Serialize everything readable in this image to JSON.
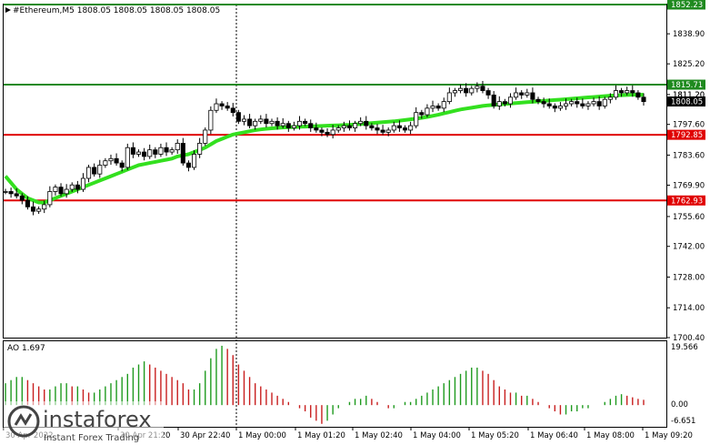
{
  "header": {
    "symbol_label": "#Ethereum,M5  1808.05 1808.05 1808.05 1808.05"
  },
  "indicator": {
    "label": "AO 1.697",
    "scale_top": "19.566",
    "scale_zero": "0.00",
    "scale_bottom": "-6.651"
  },
  "watermark": {
    "brand": "instaforex",
    "tagline": "Instant Forex Trading"
  },
  "colors": {
    "background": "#ffffff",
    "candle": "#000000",
    "ma_line": "#33e01f",
    "support_resistance": "#e00000",
    "top_level": "#1f8a1f",
    "ao_up": "#1e9a1e",
    "ao_down": "#c81e1e",
    "current_price_badge": "#000000"
  },
  "chart_data": {
    "type": "candlestick",
    "symbol": "#Ethereum",
    "timeframe": "M5",
    "y_ticks": [
      "1838.90",
      "1825.20",
      "1811.20",
      "1797.60",
      "1783.60",
      "1769.90",
      "1755.60",
      "1742.00",
      "1728.00",
      "1714.00",
      "1700.40"
    ],
    "x_ticks": [
      "30 Apr 2022",
      "30 Apr 21:20",
      "30 Apr 22:40",
      "1 May 00:00",
      "1 May 01:20",
      "1 May 02:40",
      "1 May 04:00",
      "1 May 05:20",
      "1 May 06:40",
      "1 May 08:00",
      "1 May 09:20"
    ],
    "x_ticks_display": [
      "30 Apr 2022",
      "30 Apr 21:20",
      "30 Apr 22:40",
      "1 May 00:00",
      "1 May 01:20",
      "1 May 02:40",
      "1 May 04:00",
      "1 May 05:20",
      "1 May 06:40",
      "1 May 08:00",
      "1 May 09:20"
    ],
    "ylim": [
      1700.4,
      1852.23
    ],
    "levels": [
      {
        "value": 1852.23,
        "label": "1852.23",
        "color": "#1f8a1f"
      },
      {
        "value": 1815.71,
        "label": "1815.71",
        "color": "#1f8a1f"
      },
      {
        "value": 1792.85,
        "label": "1792.85",
        "color": "#e00000"
      },
      {
        "value": 1762.93,
        "label": "1762.93",
        "color": "#e00000"
      }
    ],
    "current_price": {
      "value": 1808.05,
      "label": "1808.05"
    },
    "secondary_price": {
      "value": 1811.2,
      "label": "1811.20"
    },
    "close": [
      1767,
      1766,
      1765,
      1763,
      1760,
      1758,
      1759,
      1761,
      1767,
      1769,
      1766,
      1768,
      1770,
      1768,
      1773,
      1778,
      1775,
      1779,
      1781,
      1782,
      1780,
      1778,
      1787,
      1784,
      1785,
      1783,
      1786,
      1784,
      1787,
      1785,
      1786,
      1789,
      1780,
      1778,
      1784,
      1789,
      1795,
      1804,
      1807,
      1806,
      1805,
      1803,
      1799,
      1800,
      1797,
      1799,
      1800,
      1798,
      1799,
      1797,
      1798,
      1796,
      1797,
      1799,
      1798,
      1796,
      1795,
      1794,
      1793,
      1795,
      1796,
      1797,
      1796,
      1798,
      1799,
      1797,
      1796,
      1795,
      1794,
      1795,
      1797,
      1796,
      1795,
      1797,
      1803,
      1802,
      1805,
      1806,
      1805,
      1808,
      1812,
      1813,
      1814,
      1812,
      1814,
      1815,
      1813,
      1811,
      1806,
      1808,
      1807,
      1810,
      1812,
      1811,
      1812,
      1809,
      1808,
      1807,
      1806,
      1805,
      1806,
      1807,
      1808,
      1807,
      1806,
      1807,
      1808,
      1806,
      1809,
      1810,
      1813,
      1812,
      1813,
      1812,
      1810,
      1808
    ],
    "ma": [
      1774,
      1771,
      1768,
      1766,
      1764,
      1763,
      1762,
      1762,
      1763,
      1764,
      1765,
      1766,
      1767,
      1768,
      1769,
      1770,
      1771,
      1772,
      1773,
      1774,
      1775,
      1776,
      1777,
      1778,
      1779,
      1779.5,
      1780,
      1780.5,
      1781,
      1781.5,
      1782,
      1783,
      1783.5,
      1784,
      1785,
      1786,
      1787,
      1788.5,
      1790,
      1791,
      1792,
      1793,
      1793.5,
      1794,
      1794.5,
      1795,
      1795.3,
      1795.6,
      1795.8,
      1796,
      1796.2,
      1796.3,
      1796.4,
      1796.5,
      1796.6,
      1796.7,
      1796.8,
      1796.9,
      1797,
      1797.1,
      1797.2,
      1797.3,
      1797.4,
      1797.6,
      1797.8,
      1798,
      1798.2,
      1798.4,
      1798.6,
      1798.8,
      1799,
      1799.3,
      1799.6,
      1799.9,
      1800.2,
      1800.6,
      1801,
      1801.5,
      1802,
      1802.6,
      1803.2,
      1803.8,
      1804.4,
      1804.8,
      1805.2,
      1805.6,
      1806,
      1806.3,
      1806.5,
      1806.7,
      1806.9,
      1807.1,
      1807.3,
      1807.5,
      1807.7,
      1807.9,
      1808.1,
      1808.3,
      1808.5,
      1808.7,
      1808.9,
      1809.1,
      1809.3,
      1809.5,
      1809.7,
      1809.9,
      1810.1,
      1810.3,
      1810.5,
      1810.7,
      1810.8,
      1810.9,
      1811,
      1811.1,
      1811.1,
      1811.1
    ],
    "ao": [
      7,
      8,
      9,
      9,
      8,
      7,
      6,
      5,
      5,
      6,
      7,
      7,
      6,
      6,
      5,
      4,
      4,
      5,
      6,
      7,
      8,
      9,
      10,
      12,
      13,
      14,
      13,
      12,
      11,
      10,
      9,
      8,
      7,
      5,
      5,
      7,
      11,
      15,
      18,
      19,
      18,
      16,
      13,
      11,
      9,
      7,
      6,
      5,
      4,
      3,
      2,
      1,
      0,
      -1,
      -2,
      -4,
      -5,
      -6,
      -5,
      -3,
      -1,
      0,
      1,
      2,
      2,
      3,
      2,
      1,
      0,
      -1,
      -1,
      0,
      1,
      1,
      2,
      3,
      4,
      5,
      6,
      7,
      8,
      9,
      10,
      11,
      12,
      12,
      11,
      10,
      8,
      6,
      5,
      4,
      4,
      3,
      3,
      2,
      1,
      0,
      -1,
      -2,
      -3,
      -3,
      -2,
      -2,
      -1,
      -1,
      0,
      0,
      1,
      2,
      3,
      3.5,
      3,
      2.5,
      2,
      1.7
    ],
    "ao_range": [
      -6.651,
      19.566
    ]
  }
}
